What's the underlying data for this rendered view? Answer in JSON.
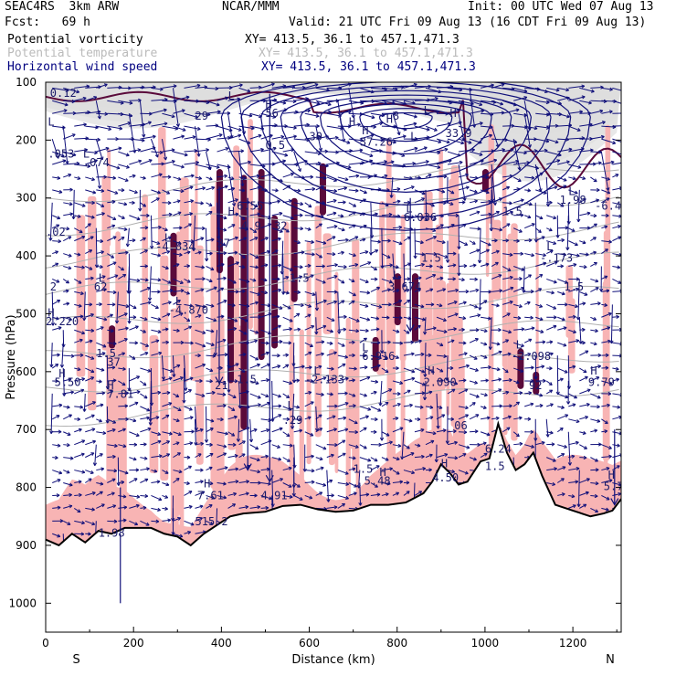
{
  "header": {
    "model": "SEAC4RS  3km ARW",
    "org": "NCAR/MMM",
    "init": "Init: 00 UTC Wed 07 Aug 13",
    "fcst": "Fcst:   69 h",
    "valid": "Valid: 21 UTC Fri 09 Aug 13 (16 CDT Fri 09 Aug 13)",
    "fields": [
      {
        "name": "Potential vorticity",
        "xy": "XY= 413.5, 36.1 to 457.1,471.3",
        "color": "#000000"
      },
      {
        "name": "Potential temperature",
        "xy": "XY= 413.5, 36.1 to 457.1,471.3",
        "color": "#b8b8b8"
      },
      {
        "name": "Horizontal wind speed",
        "xy": "XY= 413.5, 36.1 to 457.1,471.3",
        "color": "#000080"
      }
    ]
  },
  "colors": {
    "pv_fill": "#f8b4b4",
    "pv_high": "#5a0a3a",
    "wind": "#10107a",
    "theta": "#b0b0b0",
    "terrain": "#000000",
    "strat": "#3a3a3a"
  },
  "chart_data": {
    "type": "cross-section",
    "xlabel": "Distance (km)",
    "ylabel": "Pressure (hPa)",
    "xlim": [
      0,
      1310
    ],
    "ylim": [
      1050,
      100
    ],
    "x_ticks": [
      0,
      200,
      400,
      600,
      800,
      1000,
      1200
    ],
    "x_tick_labels": [
      "0",
      "200",
      "400",
      "600",
      "800",
      "1000",
      "1200"
    ],
    "y_ticks": [
      100,
      200,
      300,
      400,
      500,
      600,
      700,
      800,
      900,
      1000
    ],
    "y_tick_labels": [
      "100",
      "200",
      "300",
      "400",
      "500",
      "600",
      "700",
      "800",
      "900",
      "1000"
    ],
    "end_labels": {
      "left": "S",
      "right": "N"
    },
    "terrain_surface_hpa": [
      [
        0,
        890
      ],
      [
        30,
        900
      ],
      [
        60,
        880
      ],
      [
        90,
        895
      ],
      [
        120,
        875
      ],
      [
        150,
        880
      ],
      [
        180,
        870
      ],
      [
        210,
        870
      ],
      [
        240,
        870
      ],
      [
        270,
        880
      ],
      [
        300,
        885
      ],
      [
        330,
        900
      ],
      [
        360,
        880
      ],
      [
        380,
        870
      ],
      [
        400,
        860
      ],
      [
        420,
        850
      ],
      [
        450,
        845
      ],
      [
        500,
        842
      ],
      [
        540,
        832
      ],
      [
        580,
        830
      ],
      [
        620,
        838
      ],
      [
        660,
        842
      ],
      [
        700,
        840
      ],
      [
        740,
        830
      ],
      [
        780,
        830
      ],
      [
        820,
        826
      ],
      [
        860,
        810
      ],
      [
        880,
        790
      ],
      [
        900,
        760
      ],
      [
        920,
        775
      ],
      [
        940,
        795
      ],
      [
        960,
        790
      ],
      [
        990,
        755
      ],
      [
        1010,
        750
      ],
      [
        1030,
        690
      ],
      [
        1050,
        740
      ],
      [
        1070,
        770
      ],
      [
        1090,
        760
      ],
      [
        1110,
        740
      ],
      [
        1130,
        780
      ],
      [
        1160,
        830
      ],
      [
        1200,
        840
      ],
      [
        1240,
        850
      ],
      [
        1270,
        845
      ],
      [
        1290,
        840
      ],
      [
        1310,
        820
      ]
    ],
    "labels": [
      {
        "x": 10,
        "p": 125,
        "text": "0.12"
      },
      {
        "x": 5,
        "p": 175,
        "text": "L"
      },
      {
        "x": 5,
        "p": 230,
        "text": ".053"
      },
      {
        "x": 85,
        "p": 230,
        "text": "L"
      },
      {
        "x": 85,
        "p": 245,
        "text": ".074"
      },
      {
        "x": 0,
        "p": 365,
        "text": ".02"
      },
      {
        "x": 10,
        "p": 460,
        "text": "2"
      },
      {
        "x": 120,
        "p": 445,
        "text": "L"
      },
      {
        "x": 110,
        "p": 460,
        "text": "62"
      },
      {
        "x": 5,
        "p": 505,
        "text": "H"
      },
      {
        "x": 0,
        "p": 520,
        "text": "2.220"
      },
      {
        "x": 115,
        "p": 575,
        "text": "1.5"
      },
      {
        "x": 140,
        "p": 590,
        "text": "37"
      },
      {
        "x": 30,
        "p": 610,
        "text": "H"
      },
      {
        "x": 20,
        "p": 625,
        "text": "5.50"
      },
      {
        "x": 140,
        "p": 630,
        "text": "H"
      },
      {
        "x": 140,
        "p": 645,
        "text": "7.81"
      },
      {
        "x": 270,
        "p": 375,
        "text": "L"
      },
      {
        "x": 250,
        "p": 390,
        "text": "-4.834"
      },
      {
        "x": 295,
        "p": 485,
        "text": "L"
      },
      {
        "x": 280,
        "p": 500,
        "text": "-4.870"
      },
      {
        "x": 340,
        "p": 165,
        "text": "29"
      },
      {
        "x": 415,
        "p": 130,
        "text": "L"
      },
      {
        "x": 500,
        "p": 145,
        "text": "H"
      },
      {
        "x": 500,
        "p": 160,
        "text": "56"
      },
      {
        "x": 500,
        "p": 215,
        "text": "0.5"
      },
      {
        "x": 600,
        "p": 200,
        "text": "30"
      },
      {
        "x": 690,
        "p": 175,
        "text": "H"
      },
      {
        "x": 720,
        "p": 190,
        "text": "H"
      },
      {
        "x": 715,
        "p": 210,
        "text": "37.26"
      },
      {
        "x": 775,
        "p": 170,
        "text": "H"
      },
      {
        "x": 790,
        "p": 165,
        "text": "8"
      },
      {
        "x": 920,
        "p": 160,
        "text": "H"
      },
      {
        "x": 910,
        "p": 195,
        "text": "33.9"
      },
      {
        "x": 860,
        "p": 155,
        "text": "L"
      },
      {
        "x": 830,
        "p": 200,
        "text": "L"
      },
      {
        "x": 415,
        "p": 330,
        "text": "H"
      },
      {
        "x": 435,
        "p": 320,
        "text": "6.55"
      },
      {
        "x": 445,
        "p": 355,
        "text": "4.9"
      },
      {
        "x": 520,
        "p": 355,
        "text": "32"
      },
      {
        "x": 390,
        "p": 385,
        "text": "37"
      },
      {
        "x": 555,
        "p": 445,
        "text": "1.5"
      },
      {
        "x": 790,
        "p": 440,
        "text": "L"
      },
      {
        "x": 780,
        "p": 460,
        "text": "3.674"
      },
      {
        "x": 820,
        "p": 325,
        "text": "L"
      },
      {
        "x": 815,
        "p": 340,
        "text": "6.036"
      },
      {
        "x": 855,
        "p": 410,
        "text": "1.5"
      },
      {
        "x": 1125,
        "p": 410,
        "text": "-.173"
      },
      {
        "x": 1140,
        "p": 390,
        "text": "L"
      },
      {
        "x": 1180,
        "p": 460,
        "text": "1.5"
      },
      {
        "x": 1190,
        "p": 295,
        "text": "L"
      },
      {
        "x": 1170,
        "p": 310,
        "text": "1.98"
      },
      {
        "x": 1250,
        "p": 320,
        "text": "-6.4"
      },
      {
        "x": 1040,
        "p": 330,
        "text": "1.5"
      },
      {
        "x": 720,
        "p": 565,
        "text": "L"
      },
      {
        "x": 720,
        "p": 580,
        "text": "6.916"
      },
      {
        "x": 1070,
        "p": 560,
        "text": "L"
      },
      {
        "x": 1060,
        "p": 580,
        "text": "-2.098"
      },
      {
        "x": 1240,
        "p": 605,
        "text": "H"
      },
      {
        "x": 1235,
        "p": 625,
        "text": "9.79"
      },
      {
        "x": 1100,
        "p": 630,
        "text": "92"
      },
      {
        "x": 385,
        "p": 630,
        "text": "21"
      },
      {
        "x": 435,
        "p": 620,
        "text": "1.5"
      },
      {
        "x": 610,
        "p": 605,
        "text": "L"
      },
      {
        "x": 590,
        "p": 620,
        "text": "-2.133"
      },
      {
        "x": 550,
        "p": 665,
        "text": "L"
      },
      {
        "x": 540,
        "p": 690,
        "text": ".29"
      },
      {
        "x": 870,
        "p": 605,
        "text": "H"
      },
      {
        "x": 860,
        "p": 625,
        "text": "2.090"
      },
      {
        "x": 930,
        "p": 700,
        "text": "06"
      },
      {
        "x": 1000,
        "p": 740,
        "text": "6.24"
      },
      {
        "x": 1000,
        "p": 770,
        "text": "1.5"
      },
      {
        "x": 900,
        "p": 765,
        "text": "H"
      },
      {
        "x": 880,
        "p": 790,
        "text": "4.50"
      },
      {
        "x": 760,
        "p": 780,
        "text": "H"
      },
      {
        "x": 725,
        "p": 795,
        "text": "5.48"
      },
      {
        "x": 700,
        "p": 775,
        "text": "1.5"
      },
      {
        "x": 360,
        "p": 800,
        "text": "H"
      },
      {
        "x": 345,
        "p": 820,
        "text": "7.61"
      },
      {
        "x": 490,
        "p": 820,
        "text": "4.91"
      },
      {
        "x": 1280,
        "p": 785,
        "text": "H"
      },
      {
        "x": 1270,
        "p": 805,
        "text": "5.7"
      },
      {
        "x": 120,
        "p": 885,
        "text": "1.98"
      },
      {
        "x": 340,
        "p": 865,
        "text": "515.2"
      }
    ]
  }
}
